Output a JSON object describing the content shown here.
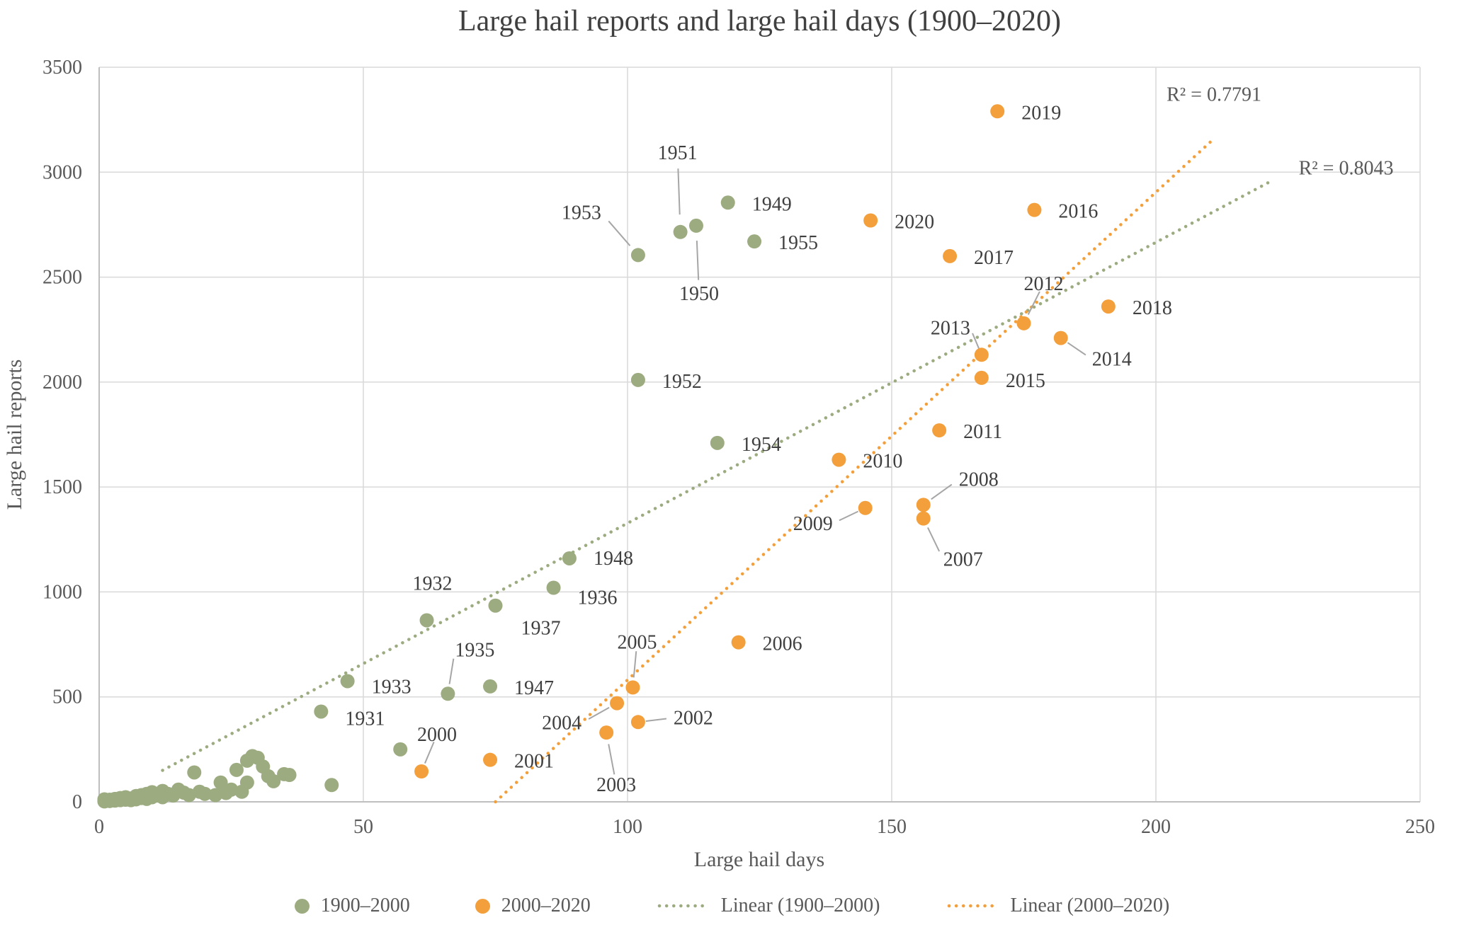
{
  "chart_data": {
    "type": "scatter",
    "title": "Large hail reports and large hail days (1900–2020)",
    "xlabel": "Large hail days",
    "ylabel": "Large hail reports",
    "xlim": [
      0,
      250
    ],
    "ylim": [
      0,
      3500
    ],
    "xticks": [
      0,
      50,
      100,
      150,
      200,
      250
    ],
    "yticks": [
      0,
      500,
      1000,
      1500,
      2000,
      2500,
      3000,
      3500
    ],
    "grid": true,
    "legend_position": "bottom",
    "colors": {
      "green": "#9cab80",
      "orange": "#f3a03c",
      "grid": "#d9d9d9",
      "axis": "#bfbfbf",
      "leader": "#a6a6a6",
      "text": "#595959",
      "label": "#3f3f3f"
    },
    "series": [
      {
        "id": "1900-2000",
        "name": "1900–2000",
        "color": "#9cab80",
        "points": [
          [
            1,
            2
          ],
          [
            1,
            6
          ],
          [
            1,
            12
          ],
          [
            2,
            4
          ],
          [
            2,
            10
          ],
          [
            3,
            6
          ],
          [
            3,
            14
          ],
          [
            4,
            8
          ],
          [
            4,
            18
          ],
          [
            5,
            10
          ],
          [
            5,
            22
          ],
          [
            6,
            8
          ],
          [
            6,
            16
          ],
          [
            7,
            12
          ],
          [
            7,
            28
          ],
          [
            8,
            18
          ],
          [
            8,
            32
          ],
          [
            9,
            14
          ],
          [
            9,
            38
          ],
          [
            10,
            22
          ],
          [
            10,
            46
          ],
          [
            11,
            30
          ],
          [
            12,
            22
          ],
          [
            12,
            52
          ],
          [
            13,
            38
          ],
          [
            14,
            30
          ],
          [
            15,
            58
          ],
          [
            16,
            44
          ],
          [
            17,
            32
          ],
          [
            18,
            140
          ],
          [
            19,
            48
          ],
          [
            20,
            38
          ],
          [
            22,
            32
          ],
          [
            23,
            92
          ],
          [
            24,
            42
          ],
          [
            25,
            58
          ],
          [
            26,
            152
          ],
          [
            27,
            48
          ],
          [
            28,
            196
          ],
          [
            28,
            92
          ],
          [
            29,
            218
          ],
          [
            30,
            210
          ],
          [
            31,
            168
          ],
          [
            32,
            122
          ],
          [
            33,
            98
          ],
          [
            35,
            132
          ],
          [
            36,
            128
          ],
          [
            44,
            80
          ],
          [
            57,
            250
          ]
        ],
        "labeled_points": [
          {
            "year": "1931",
            "x": 42,
            "y": 430,
            "dx": 34,
            "dy": 10,
            "anchor": "start",
            "leader": false
          },
          {
            "year": "1932",
            "x": 62,
            "y": 865,
            "dx": 8,
            "dy": -52,
            "anchor": "middle",
            "leader": false
          },
          {
            "year": "1933",
            "x": 47,
            "y": 575,
            "dx": 34,
            "dy": 8,
            "anchor": "start",
            "leader": false
          },
          {
            "year": "1935",
            "x": 66,
            "y": 515,
            "dx": 10,
            "dy": -62,
            "anchor": "start",
            "leader": true
          },
          {
            "year": "1936",
            "x": 86,
            "y": 1020,
            "dx": 34,
            "dy": 14,
            "anchor": "start",
            "leader": false
          },
          {
            "year": "1937",
            "x": 75,
            "y": 935,
            "dx": 36,
            "dy": 32,
            "anchor": "start",
            "leader": false
          },
          {
            "year": "1947",
            "x": 74,
            "y": 550,
            "dx": 34,
            "dy": 2,
            "anchor": "start",
            "leader": false
          },
          {
            "year": "1948",
            "x": 89,
            "y": 1160,
            "dx": 34,
            "dy": 0,
            "anchor": "start",
            "leader": false
          },
          {
            "year": "1949",
            "x": 119,
            "y": 2855,
            "dx": 34,
            "dy": 2,
            "anchor": "start",
            "leader": false
          },
          {
            "year": "1950",
            "x": 113,
            "y": 2745,
            "dx": 4,
            "dy": 96,
            "anchor": "middle",
            "leader": true
          },
          {
            "year": "1951",
            "x": 110,
            "y": 2715,
            "dx": -4,
            "dy": -112,
            "anchor": "middle",
            "leader": true
          },
          {
            "year": "1952",
            "x": 102,
            "y": 2010,
            "dx": 34,
            "dy": 2,
            "anchor": "start",
            "leader": false
          },
          {
            "year": "1953",
            "x": 102,
            "y": 2605,
            "dx": -52,
            "dy": -60,
            "anchor": "end",
            "leader": true
          },
          {
            "year": "1954",
            "x": 117,
            "y": 1710,
            "dx": 34,
            "dy": 2,
            "anchor": "start",
            "leader": false
          },
          {
            "year": "1955",
            "x": 124,
            "y": 2670,
            "dx": 34,
            "dy": 2,
            "anchor": "start",
            "leader": false
          }
        ]
      },
      {
        "id": "2000-2020",
        "name": "2000–2020",
        "color": "#f3a03c",
        "points": [],
        "labeled_points": [
          {
            "year": "2000",
            "x": 61,
            "y": 145,
            "dx": 22,
            "dy": -52,
            "anchor": "middle",
            "leader": true
          },
          {
            "year": "2001",
            "x": 74,
            "y": 200,
            "dx": 34,
            "dy": 2,
            "anchor": "start",
            "leader": false
          },
          {
            "year": "2002",
            "x": 102,
            "y": 380,
            "dx": 50,
            "dy": -6,
            "anchor": "start",
            "leader": true
          },
          {
            "year": "2003",
            "x": 96,
            "y": 330,
            "dx": 14,
            "dy": 74,
            "anchor": "middle",
            "leader": true
          },
          {
            "year": "2004",
            "x": 98,
            "y": 470,
            "dx": -50,
            "dy": 28,
            "anchor": "end",
            "leader": true
          },
          {
            "year": "2005",
            "x": 101,
            "y": 545,
            "dx": 6,
            "dy": -64,
            "anchor": "middle",
            "leader": true
          },
          {
            "year": "2006",
            "x": 121,
            "y": 760,
            "dx": 34,
            "dy": 2,
            "anchor": "start",
            "leader": false
          },
          {
            "year": "2007",
            "x": 156,
            "y": 1350,
            "dx": 28,
            "dy": 58,
            "anchor": "start",
            "leader": true
          },
          {
            "year": "2008",
            "x": 156,
            "y": 1415,
            "dx": 50,
            "dy": -36,
            "anchor": "start",
            "leader": true
          },
          {
            "year": "2009",
            "x": 145,
            "y": 1400,
            "dx": -46,
            "dy": 22,
            "anchor": "end",
            "leader": true
          },
          {
            "year": "2010",
            "x": 140,
            "y": 1630,
            "dx": 34,
            "dy": 2,
            "anchor": "start",
            "leader": false
          },
          {
            "year": "2011",
            "x": 159,
            "y": 1770,
            "dx": 34,
            "dy": 2,
            "anchor": "start",
            "leader": false
          },
          {
            "year": "2012",
            "x": 175,
            "y": 2280,
            "dx": 28,
            "dy": -56,
            "anchor": "middle",
            "leader": true
          },
          {
            "year": "2013",
            "x": 167,
            "y": 2130,
            "dx": -16,
            "dy": -38,
            "anchor": "end",
            "leader": true
          },
          {
            "year": "2014",
            "x": 182,
            "y": 2210,
            "dx": 44,
            "dy": 30,
            "anchor": "start",
            "leader": true
          },
          {
            "year": "2015",
            "x": 167,
            "y": 2020,
            "dx": 34,
            "dy": 4,
            "anchor": "start",
            "leader": false
          },
          {
            "year": "2016",
            "x": 177,
            "y": 2820,
            "dx": 34,
            "dy": 2,
            "anchor": "start",
            "leader": false
          },
          {
            "year": "2017",
            "x": 161,
            "y": 2600,
            "dx": 34,
            "dy": 2,
            "anchor": "start",
            "leader": false
          },
          {
            "year": "2018",
            "x": 191,
            "y": 2360,
            "dx": 34,
            "dy": 2,
            "anchor": "start",
            "leader": false
          },
          {
            "year": "2019",
            "x": 170,
            "y": 3290,
            "dx": 34,
            "dy": 2,
            "anchor": "start",
            "leader": false
          },
          {
            "year": "2020",
            "x": 146,
            "y": 2770,
            "dx": 34,
            "dy": 2,
            "anchor": "start",
            "leader": false
          }
        ]
      }
    ],
    "trendlines": [
      {
        "name": "Linear (1900–2000)",
        "color": "#9cab80",
        "x1": 12,
        "y1": 150,
        "x2": 222,
        "y2": 2960,
        "r2": "R² = 0.8043",
        "r2_x": 236,
        "r2_y": 2990
      },
      {
        "name": "Linear (2000–2020)",
        "color": "#f3a03c",
        "x1": 75,
        "y1": 0,
        "x2": 211,
        "y2": 3160,
        "r2": "R² = 0.7791",
        "r2_x": 211,
        "r2_y": 3340
      }
    ],
    "legend": [
      {
        "marker": "dot",
        "color": "#9cab80",
        "label": "1900–2000"
      },
      {
        "marker": "dot",
        "color": "#f3a03c",
        "label": "2000–2020"
      },
      {
        "marker": "dotted",
        "color": "#9cab80",
        "label": "Linear (1900–2000)"
      },
      {
        "marker": "dotted",
        "color": "#f3a03c",
        "label": "Linear (2000–2020)"
      }
    ]
  }
}
